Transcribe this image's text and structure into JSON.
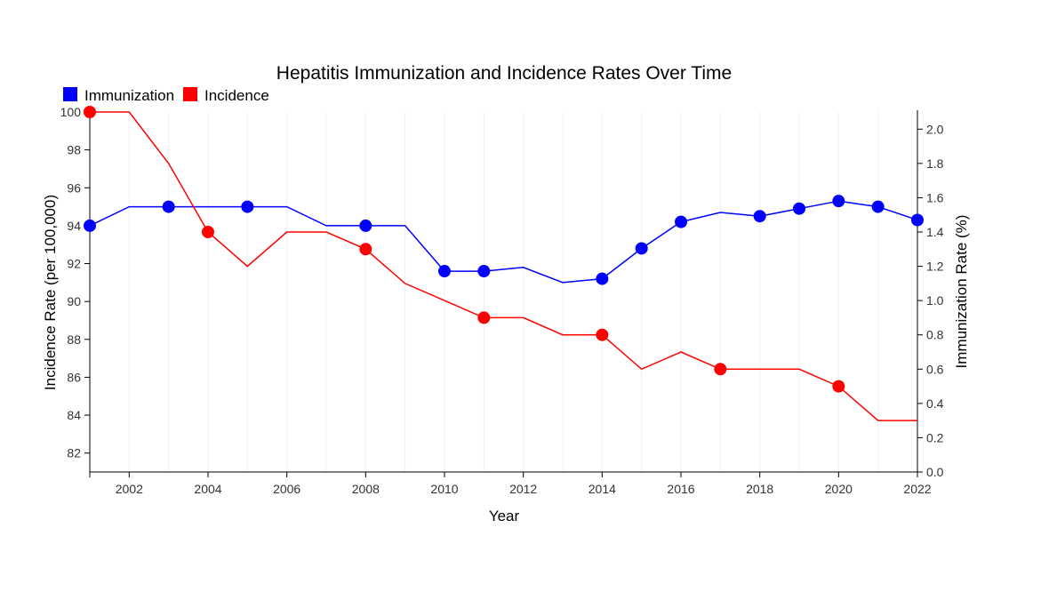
{
  "chart_data": {
    "type": "line",
    "title": "Hepatitis Immunization and Incidence Rates Over Time",
    "xlabel": "Year",
    "ylabel_left": "Incidence Rate (per 100,000)",
    "ylabel_right": "Immunization Rate (%)",
    "x": [
      2001,
      2002,
      2003,
      2004,
      2005,
      2006,
      2007,
      2008,
      2009,
      2010,
      2011,
      2012,
      2013,
      2014,
      2015,
      2016,
      2017,
      2018,
      2019,
      2020,
      2021,
      2022
    ],
    "xlim": [
      2001,
      2022
    ],
    "x_ticks": [
      2002,
      2004,
      2006,
      2008,
      2010,
      2012,
      2014,
      2016,
      2018,
      2020,
      2022
    ],
    "ylim_left": [
      81,
      100
    ],
    "y_ticks_left": [
      82,
      84,
      86,
      88,
      90,
      92,
      94,
      96,
      98,
      100
    ],
    "ylim_right": [
      0,
      2.1
    ],
    "y_ticks_right": [
      "0.0",
      "0.2",
      "0.4",
      "0.6",
      "0.8",
      "1.0",
      "1.2",
      "1.4",
      "1.6",
      "1.8",
      "2.0"
    ],
    "legend_position": "top-left",
    "grid_x": true,
    "series": [
      {
        "name": "Immunization",
        "axis": "left",
        "color": "#0000ff",
        "values": [
          94.0,
          95.0,
          95.0,
          95.0,
          95.0,
          95.0,
          94.0,
          94.0,
          94.0,
          91.6,
          91.6,
          91.8,
          91.0,
          91.2,
          92.8,
          94.2,
          94.7,
          94.5,
          94.9,
          95.3,
          95.0,
          94.3
        ],
        "marker_years": [
          2001,
          2003,
          2005,
          2008,
          2010,
          2011,
          2014,
          2015,
          2016,
          2018,
          2019,
          2020,
          2021,
          2022
        ]
      },
      {
        "name": "Incidence",
        "axis": "right",
        "color": "#ff0000",
        "values": [
          2.1,
          2.1,
          1.8,
          1.4,
          1.2,
          1.4,
          1.4,
          1.3,
          1.1,
          1.0,
          0.9,
          0.9,
          0.8,
          0.8,
          0.6,
          0.7,
          0.6,
          0.6,
          0.6,
          0.5,
          0.3,
          0.3
        ],
        "marker_years": [
          2001,
          2004,
          2008,
          2011,
          2014,
          2017,
          2020
        ]
      }
    ]
  }
}
